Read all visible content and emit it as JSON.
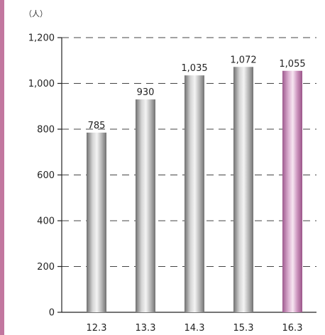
{
  "chart_data": {
    "type": "bar",
    "unit_label": "（人）",
    "categories": [
      "12.3",
      "13.3",
      "14.3",
      "15.3",
      "16.3"
    ],
    "values": [
      785,
      930,
      1035,
      1072,
      1055
    ],
    "value_labels": [
      "785",
      "930",
      "1,035",
      "1,072",
      "1,055"
    ],
    "ylim": [
      0,
      1200
    ],
    "yticks": [
      0,
      200,
      400,
      600,
      800,
      1000,
      1200
    ],
    "ytick_labels": [
      "0",
      "200",
      "400",
      "600",
      "800",
      "1,000",
      "1,200"
    ],
    "grid": "horizontal dashed",
    "bar_colors": [
      "#a3a3a3",
      "#a3a3a3",
      "#a3a3a3",
      "#a3a3a3",
      "#c98ab8"
    ],
    "highlight_index": 4
  }
}
